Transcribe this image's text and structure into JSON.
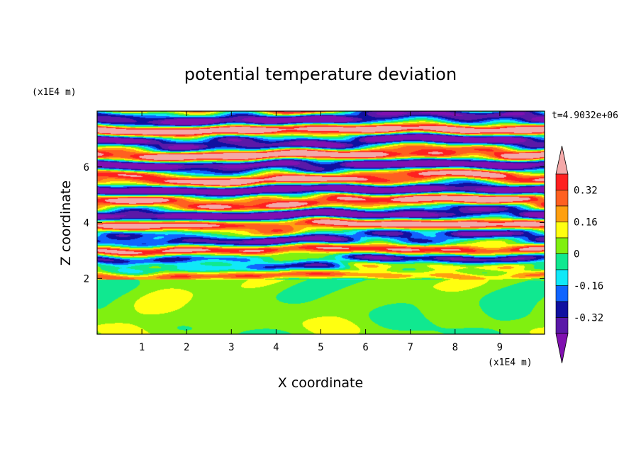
{
  "chart_data": {
    "type": "heatmap",
    "title": "potential temperature deviation",
    "xlabel": "X coordinate",
    "ylabel": "Z coordinate",
    "x_unit_label": "(x1E4 m)",
    "y_unit_label": "(x1E4 m)",
    "time_label": "t=4.9032e+06",
    "xlim": [
      0,
      10
    ],
    "ylim": [
      0,
      8
    ],
    "x_ticks": [
      1,
      2,
      3,
      4,
      5,
      6,
      7,
      8,
      9
    ],
    "y_ticks": [
      2,
      4,
      6
    ],
    "colorbar": {
      "levels": [
        -0.4,
        -0.32,
        -0.24,
        -0.16,
        -0.08,
        0,
        0.08,
        0.16,
        0.24,
        0.32,
        0.4
      ],
      "tick_labels": [
        "0.32",
        "0.16",
        "0",
        "-0.16",
        "-0.32"
      ],
      "colors": [
        "#8010b0",
        "#5a18a8",
        "#1010a0",
        "#1064ff",
        "#10e8f8",
        "#10e890",
        "#80f010",
        "#ffff10",
        "#ffa010",
        "#ff6020",
        "#ff2020",
        "#f4a8a8"
      ],
      "extend": "both"
    },
    "description_regions": [
      {
        "z_range": [
          0,
          1.95
        ],
        "dominant_values": [
          0,
          0.08
        ]
      },
      {
        "z_range": [
          1.95,
          8
        ],
        "dominant_values": [
          -0.4,
          0.4
        ]
      }
    ]
  }
}
